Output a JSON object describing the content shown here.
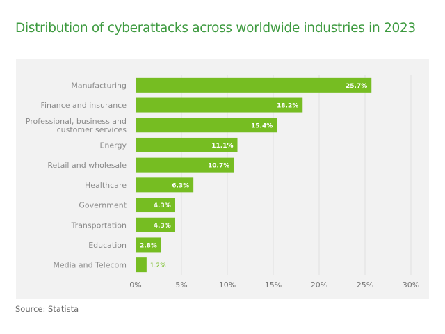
{
  "title": "Distribution of cyberattacks across worldwide industries in 2023",
  "source": "Source: Statista",
  "colors": {
    "bar": "#76bd22",
    "title": "#3d9a3f",
    "background": "#f2f2f2"
  },
  "chart_data": {
    "type": "bar",
    "orientation": "horizontal",
    "title": "Distribution of cyberattacks across worldwide industries in 2023",
    "categories": [
      [
        "Manufacturing"
      ],
      [
        "Finance and insurance"
      ],
      [
        "Professional, business and",
        "customer services"
      ],
      [
        "Energy"
      ],
      [
        "Retail and wholesale"
      ],
      [
        "Healthcare"
      ],
      [
        "Government"
      ],
      [
        "Transportation"
      ],
      [
        "Education"
      ],
      [
        "Media and Telecom"
      ]
    ],
    "values": [
      25.7,
      18.2,
      15.4,
      11.1,
      10.7,
      6.3,
      4.3,
      4.3,
      2.8,
      1.2
    ],
    "data_labels": [
      "25.7%",
      "18.2%",
      "15.4%",
      "11.1%",
      "10.7%",
      "6.3%",
      "4.3%",
      "4.3%",
      "2.8%",
      "1.2%"
    ],
    "xlim": [
      0,
      30
    ],
    "ticks": [
      0,
      5,
      10,
      15,
      20,
      25,
      30
    ],
    "tick_labels": [
      "0%",
      "5%",
      "10%",
      "15%",
      "20%",
      "25%",
      "30%"
    ],
    "grid": true
  }
}
